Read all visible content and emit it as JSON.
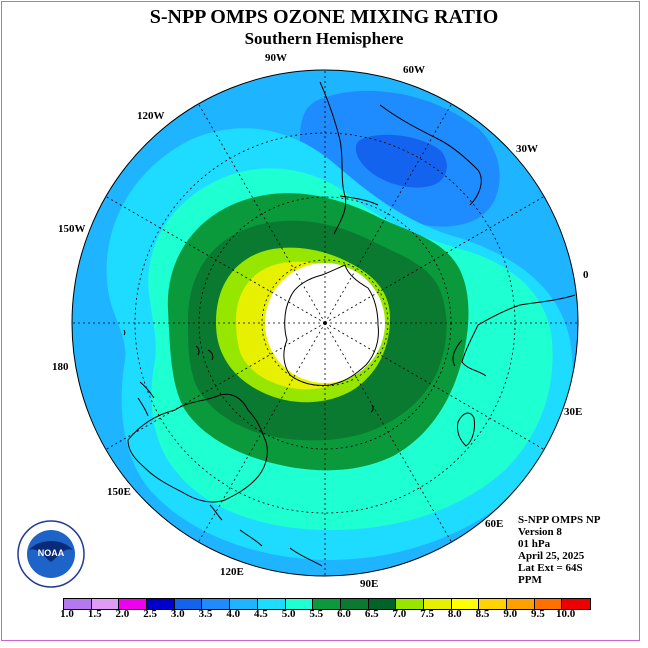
{
  "title": "S-NPP OMPS OZONE MIXING RATIO",
  "subtitle": "Southern Hemisphere",
  "longitude_labels": [
    "90W",
    "60W",
    "30W",
    "0",
    "30E",
    "60E",
    "90E",
    "120E",
    "150E",
    "180",
    "150W",
    "120W"
  ],
  "info": {
    "instrument": "S-NPP OMPS NP",
    "version": "Version 8",
    "level": "01 hPa",
    "date": "April 25, 2025",
    "lat_ext": "Lat Ext = 64S",
    "units": "PPM"
  },
  "logo_text": "NOAA",
  "colorbar": {
    "labels": [
      "1.0",
      "1.5",
      "2.0",
      "2.5",
      "3.0",
      "3.5",
      "4.0",
      "4.5",
      "5.0",
      "5.5",
      "6.0",
      "6.5",
      "7.0",
      "7.5",
      "8.0",
      "8.5",
      "9.0",
      "9.5",
      "10.0"
    ],
    "colors": [
      "#b478f0",
      "#e09bf5",
      "#ee00ee",
      "#0000cc",
      "#1463ee",
      "#1e8cff",
      "#1eb4ff",
      "#1edcff",
      "#1effd2",
      "#0a9a3c",
      "#0a7a30",
      "#006428",
      "#96e600",
      "#e6f000",
      "#ffff00",
      "#ffd200",
      "#ffa000",
      "#ff7000",
      "#ee0000",
      "#cc0000",
      "#8c5a3c"
    ]
  },
  "map_colors": {
    "outer": "#1eb4ff",
    "mid_blue": "#1e8cff",
    "dark_blue": "#1463ee",
    "cyan": "#1edcff",
    "teal": "#1effd2",
    "green": "#0a9a3c",
    "dark_green": "#0a7a30",
    "lime": "#96e600",
    "yellow": "#e6f000",
    "pole": "#ffffff"
  }
}
